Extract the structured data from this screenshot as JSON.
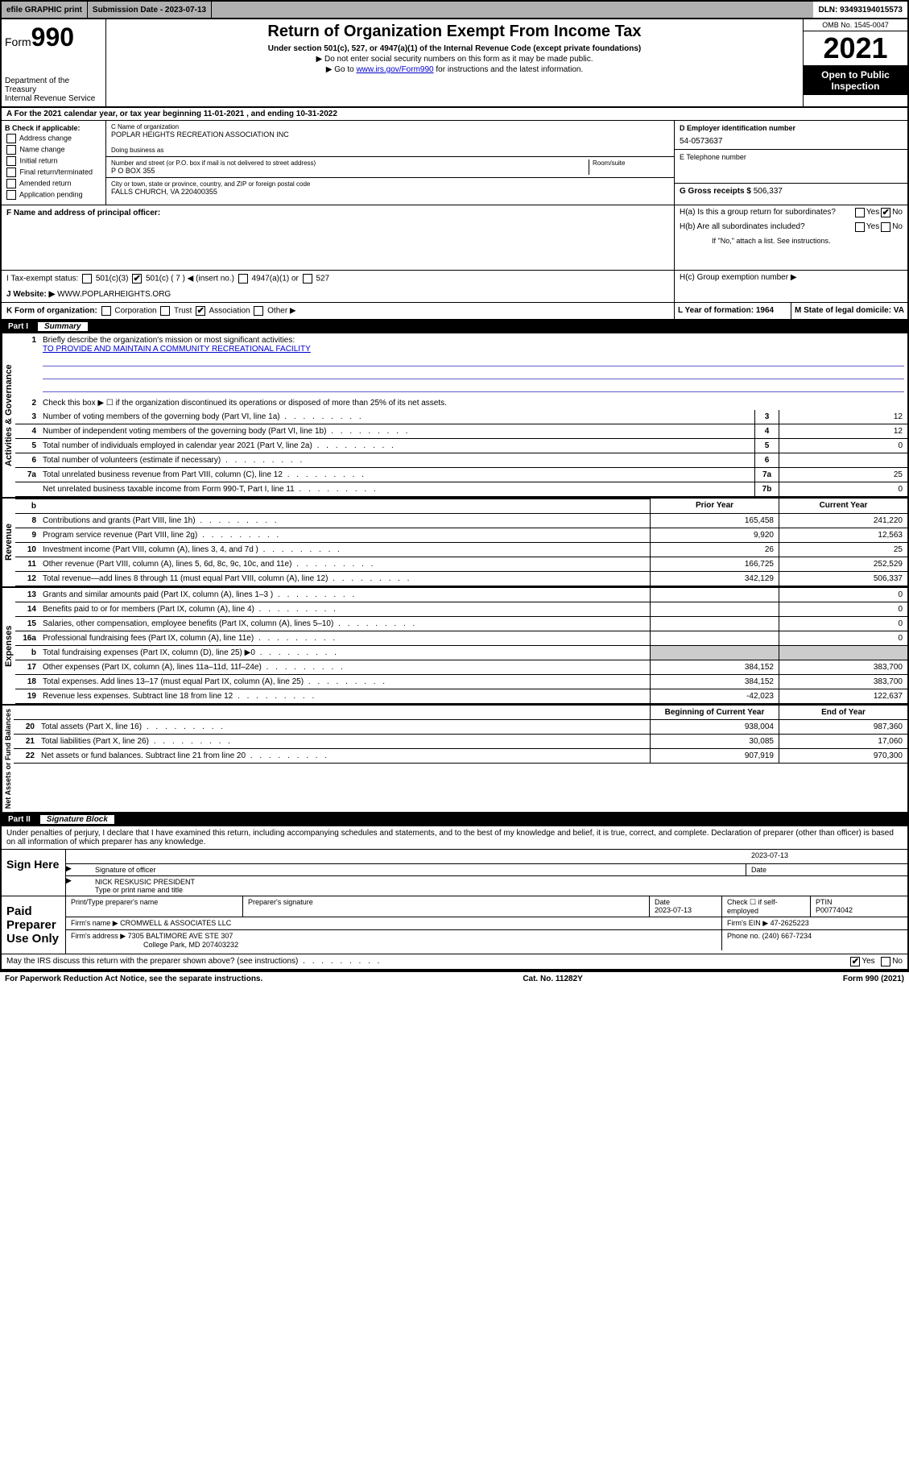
{
  "topbar": {
    "efile": "efile GRAPHIC print",
    "subdate_label": "Submission Date - 2023-07-13",
    "dln": "DLN: 93493194015573"
  },
  "header": {
    "form_prefix": "Form",
    "form_num": "990",
    "dept": "Department of the Treasury",
    "irs": "Internal Revenue Service",
    "title": "Return of Organization Exempt From Income Tax",
    "sub1": "Under section 501(c), 527, or 4947(a)(1) of the Internal Revenue Code (except private foundations)",
    "sub2": "▶ Do not enter social security numbers on this form as it may be made public.",
    "sub3_pre": "▶ Go to ",
    "sub3_link": "www.irs.gov/Form990",
    "sub3_post": " for instructions and the latest information.",
    "omb": "OMB No. 1545-0047",
    "year": "2021",
    "open": "Open to Public Inspection"
  },
  "rowA": "A For the 2021 calendar year, or tax year beginning 11-01-2021   , and ending 10-31-2022",
  "boxB": {
    "hdr": "B Check if applicable:",
    "opts": [
      "Address change",
      "Name change",
      "Initial return",
      "Final return/terminated",
      "Amended return",
      "Application pending"
    ]
  },
  "boxC": {
    "name_label": "C Name of organization",
    "name": "POPLAR HEIGHTS RECREATION ASSOCIATION INC",
    "dba_label": "Doing business as",
    "addr_label": "Number and street (or P.O. box if mail is not delivered to street address)",
    "room_label": "Room/suite",
    "addr": "P O BOX 355",
    "city_label": "City or town, state or province, country, and ZIP or foreign postal code",
    "city": "FALLS CHURCH, VA   220400355"
  },
  "boxD": {
    "label": "D Employer identification number",
    "val": "54-0573637"
  },
  "boxE": {
    "label": "E Telephone number",
    "val": ""
  },
  "boxG": {
    "label": "G Gross receipts $",
    "val": "506,337"
  },
  "boxF": {
    "label": "F  Name and address of principal officer:"
  },
  "boxH": {
    "a": "H(a)  Is this a group return for subordinates?",
    "b": "H(b)  Are all subordinates included?",
    "b_note": "If \"No,\" attach a list. See instructions.",
    "c": "H(c)  Group exemption number ▶",
    "yes": "Yes",
    "no": "No"
  },
  "boxI": {
    "label": "I   Tax-exempt status:",
    "o1": "501(c)(3)",
    "o2": "501(c) ( 7 ) ◀ (insert no.)",
    "o3": "4947(a)(1) or",
    "o4": "527"
  },
  "boxJ": {
    "label": "J   Website: ▶",
    "val": " WWW.POPLARHEIGHTS.ORG"
  },
  "boxK": {
    "label": "K Form of organization:",
    "o1": "Corporation",
    "o2": "Trust",
    "o3": "Association",
    "o4": "Other ▶"
  },
  "boxL": {
    "label": "L Year of formation: 1964"
  },
  "boxM": {
    "label": "M State of legal domicile: VA"
  },
  "part1": {
    "hdr_num": "Part I",
    "hdr_txt": "Summary",
    "l1": "Briefly describe the organization's mission or most significant activities:",
    "l1v": "TO PROVIDE AND MAINTAIN A COMMUNITY RECREATIONAL FACILITY",
    "l2": "Check this box ▶ ☐  if the organization discontinued its operations or disposed of more than 25% of its net assets.",
    "rows_gov": [
      {
        "n": "3",
        "d": "Number of voting members of the governing body (Part VI, line 1a)",
        "b": "3",
        "v": "12"
      },
      {
        "n": "4",
        "d": "Number of independent voting members of the governing body (Part VI, line 1b)",
        "b": "4",
        "v": "12"
      },
      {
        "n": "5",
        "d": "Total number of individuals employed in calendar year 2021 (Part V, line 2a)",
        "b": "5",
        "v": "0"
      },
      {
        "n": "6",
        "d": "Total number of volunteers (estimate if necessary)",
        "b": "6",
        "v": ""
      },
      {
        "n": "7a",
        "d": "Total unrelated business revenue from Part VIII, column (C), line 12",
        "b": "7a",
        "v": "25"
      },
      {
        "n": "",
        "d": "Net unrelated business taxable income from Form 990-T, Part I, line 11",
        "b": "7b",
        "v": "0"
      }
    ],
    "col_prior": "Prior Year",
    "col_curr": "Current Year",
    "rows_rev": [
      {
        "n": "8",
        "d": "Contributions and grants (Part VIII, line 1h)",
        "p": "165,458",
        "c": "241,220"
      },
      {
        "n": "9",
        "d": "Program service revenue (Part VIII, line 2g)",
        "p": "9,920",
        "c": "12,563"
      },
      {
        "n": "10",
        "d": "Investment income (Part VIII, column (A), lines 3, 4, and 7d )",
        "p": "26",
        "c": "25"
      },
      {
        "n": "11",
        "d": "Other revenue (Part VIII, column (A), lines 5, 6d, 8c, 9c, 10c, and 11e)",
        "p": "166,725",
        "c": "252,529"
      },
      {
        "n": "12",
        "d": "Total revenue—add lines 8 through 11 (must equal Part VIII, column (A), line 12)",
        "p": "342,129",
        "c": "506,337"
      }
    ],
    "rows_exp": [
      {
        "n": "13",
        "d": "Grants and similar amounts paid (Part IX, column (A), lines 1–3 )",
        "p": "",
        "c": "0"
      },
      {
        "n": "14",
        "d": "Benefits paid to or for members (Part IX, column (A), line 4)",
        "p": "",
        "c": "0"
      },
      {
        "n": "15",
        "d": "Salaries, other compensation, employee benefits (Part IX, column (A), lines 5–10)",
        "p": "",
        "c": "0"
      },
      {
        "n": "16a",
        "d": "Professional fundraising fees (Part IX, column (A), line 11e)",
        "p": "",
        "c": "0"
      },
      {
        "n": "b",
        "d": "Total fundraising expenses (Part IX, column (D), line 25) ▶0",
        "p": "grey",
        "c": "grey"
      },
      {
        "n": "17",
        "d": "Other expenses (Part IX, column (A), lines 11a–11d, 11f–24e)",
        "p": "384,152",
        "c": "383,700"
      },
      {
        "n": "18",
        "d": "Total expenses. Add lines 13–17 (must equal Part IX, column (A), line 25)",
        "p": "384,152",
        "c": "383,700"
      },
      {
        "n": "19",
        "d": "Revenue less expenses. Subtract line 18 from line 12",
        "p": "-42,023",
        "c": "122,637"
      }
    ],
    "col_beg": "Beginning of Current Year",
    "col_end": "End of Year",
    "rows_net": [
      {
        "n": "20",
        "d": "Total assets (Part X, line 16)",
        "p": "938,004",
        "c": "987,360"
      },
      {
        "n": "21",
        "d": "Total liabilities (Part X, line 26)",
        "p": "30,085",
        "c": "17,060"
      },
      {
        "n": "22",
        "d": "Net assets or fund balances. Subtract line 21 from line 20",
        "p": "907,919",
        "c": "970,300"
      }
    ],
    "vlab_gov": "Activities & Governance",
    "vlab_rev": "Revenue",
    "vlab_exp": "Expenses",
    "vlab_net": "Net Assets or Fund Balances"
  },
  "part2": {
    "hdr_num": "Part II",
    "hdr_txt": "Signature Block",
    "decl": "Under penalties of perjury, I declare that I have examined this return, including accompanying schedules and statements, and to the best of my knowledge and belief, it is true, correct, and complete. Declaration of preparer (other than officer) is based on all information of which preparer has any knowledge.",
    "sign_here": "Sign Here",
    "sig_officer": "Signature of officer",
    "sig_date": "Date",
    "sig_date_v": "2023-07-13",
    "officer_name": "NICK RESKUSIC  PRESIDENT",
    "type_name": "Type or print name and title",
    "paid": "Paid Preparer Use Only",
    "prep_name_l": "Print/Type preparer's name",
    "prep_sig_l": "Preparer's signature",
    "prep_date_l": "Date",
    "prep_date_v": "2023-07-13",
    "check_self": "Check ☐ if self-employed",
    "ptin_l": "PTIN",
    "ptin_v": "P00774042",
    "firm_name_l": "Firm's name    ▶",
    "firm_name_v": "CROMWELL & ASSOCIATES LLC",
    "firm_ein_l": "Firm's EIN ▶",
    "firm_ein_v": "47-2625223",
    "firm_addr_l": "Firm's address ▶",
    "firm_addr_v": "7305 BALTIMORE AVE STE 307",
    "firm_addr_v2": "College Park, MD  207403232",
    "phone_l": "Phone no.",
    "phone_v": "(240) 667-7234",
    "may_irs": "May the IRS discuss this return with the preparer shown above? (see instructions)",
    "yes": "Yes",
    "no": "No"
  },
  "footer": {
    "left": "For Paperwork Reduction Act Notice, see the separate instructions.",
    "mid": "Cat. No. 11282Y",
    "right": "Form 990 (2021)"
  }
}
